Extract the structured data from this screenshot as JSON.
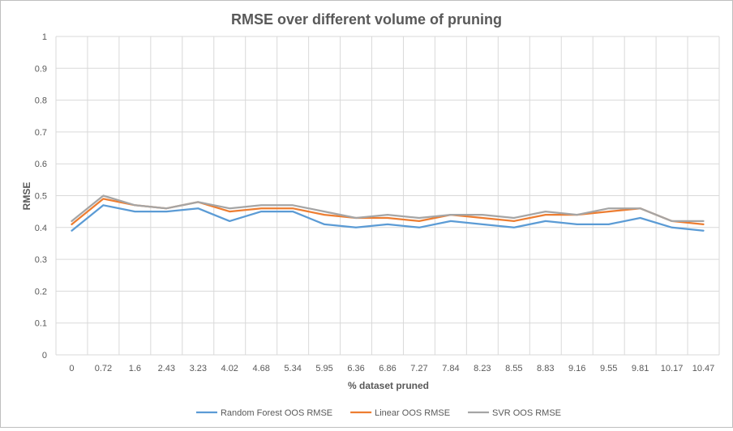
{
  "chart_data": {
    "type": "line",
    "title": "RMSE over different volume of pruning",
    "xlabel": "% dataset pruned",
    "ylabel": "RMSE",
    "categories": [
      "0",
      "0.72",
      "1.6",
      "2.43",
      "3.23",
      "4.02",
      "4.68",
      "5.34",
      "5.95",
      "6.36",
      "6.86",
      "7.27",
      "7.84",
      "8.23",
      "8.55",
      "8.83",
      "9.16",
      "9.55",
      "9.81",
      "10.17",
      "10.47"
    ],
    "y_ticks": [
      "0",
      "0.1",
      "0.2",
      "0.3",
      "0.4",
      "0.5",
      "0.6",
      "0.7",
      "0.8",
      "0.9",
      "1"
    ],
    "ylim": [
      0,
      1
    ],
    "grid": true,
    "legend_position": "bottom",
    "series": [
      {
        "name": "Random Forest OOS RMSE",
        "color": "#5b9bd5",
        "values": [
          0.39,
          0.47,
          0.45,
          0.45,
          0.46,
          0.42,
          0.45,
          0.45,
          0.41,
          0.4,
          0.41,
          0.4,
          0.42,
          0.41,
          0.4,
          0.42,
          0.41,
          0.41,
          0.43,
          0.4,
          0.39
        ]
      },
      {
        "name": "Linear OOS RMSE",
        "color": "#ed7d31",
        "values": [
          0.41,
          0.49,
          0.47,
          0.46,
          0.48,
          0.45,
          0.46,
          0.46,
          0.44,
          0.43,
          0.43,
          0.42,
          0.44,
          0.43,
          0.42,
          0.44,
          0.44,
          0.45,
          0.46,
          0.42,
          0.41
        ]
      },
      {
        "name": "SVR OOS RMSE",
        "color": "#a5a5a5",
        "values": [
          0.42,
          0.5,
          0.47,
          0.46,
          0.48,
          0.46,
          0.47,
          0.47,
          0.45,
          0.43,
          0.44,
          0.43,
          0.44,
          0.44,
          0.43,
          0.45,
          0.44,
          0.46,
          0.46,
          0.42,
          0.42
        ]
      }
    ]
  }
}
